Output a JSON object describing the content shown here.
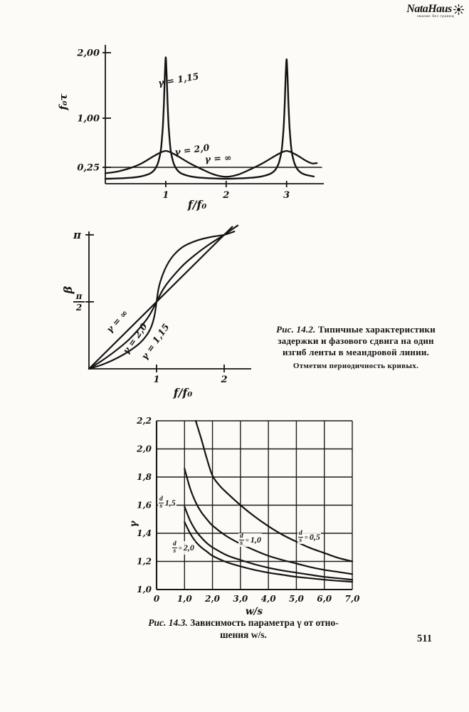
{
  "page_number": "511",
  "logo": {
    "name": "NataHaus",
    "tagline": "знание без границ"
  },
  "fig142": {
    "tag": "Рис. 14.2.",
    "line1": "Типичные характеристики",
    "line2": "задержки и фазового сдвига на один",
    "line3": "изгиб ленты в меандровой линии.",
    "note": "Отметим периодичность кривых."
  },
  "fig143": {
    "tag": "Рис. 14.3.",
    "line1": "Зависимость параметра γ от отно-",
    "line2": "шения w/s."
  },
  "chart_data": [
    {
      "id": "delay-per-bend",
      "type": "line",
      "xlabel": "f/f₀",
      "ylabel": "f₀τ",
      "xlim": [
        0,
        3.75
      ],
      "ylim": [
        0,
        2.15
      ],
      "grid": false,
      "xticks": [
        {
          "v": 1,
          "label": "1"
        },
        {
          "v": 2,
          "label": "2"
        },
        {
          "v": 3,
          "label": "3"
        }
      ],
      "yticks": [
        {
          "v": 2.0,
          "label": "2,00"
        },
        {
          "v": 1.0,
          "label": "1,00"
        },
        {
          "v": 0.25,
          "label": "0,25"
        }
      ],
      "series": [
        {
          "name": "γ = 1,15",
          "points": [
            [
              0,
              0.075
            ],
            [
              0.2,
              0.08
            ],
            [
              0.4,
              0.09
            ],
            [
              0.55,
              0.105
            ],
            [
              0.7,
              0.14
            ],
            [
              0.78,
              0.18
            ],
            [
              0.84,
              0.25
            ],
            [
              0.88,
              0.34
            ],
            [
              0.92,
              0.52
            ],
            [
              0.95,
              0.85
            ],
            [
              0.97,
              1.25
            ],
            [
              0.985,
              1.65
            ],
            [
              1.0,
              1.93
            ],
            [
              1.015,
              1.65
            ],
            [
              1.03,
              1.25
            ],
            [
              1.05,
              0.85
            ],
            [
              1.08,
              0.52
            ],
            [
              1.12,
              0.34
            ],
            [
              1.16,
              0.25
            ],
            [
              1.22,
              0.18
            ],
            [
              1.3,
              0.14
            ],
            [
              1.45,
              0.105
            ],
            [
              1.6,
              0.09
            ],
            [
              1.8,
              0.08
            ],
            [
              2.0,
              0.075
            ],
            [
              2.2,
              0.08
            ],
            [
              2.4,
              0.09
            ],
            [
              2.55,
              0.105
            ],
            [
              2.7,
              0.14
            ],
            [
              2.78,
              0.18
            ],
            [
              2.84,
              0.25
            ],
            [
              2.88,
              0.34
            ],
            [
              2.92,
              0.52
            ],
            [
              2.95,
              0.85
            ],
            [
              2.97,
              1.25
            ],
            [
              2.985,
              1.65
            ],
            [
              3.0,
              1.9
            ],
            [
              3.015,
              1.65
            ],
            [
              3.03,
              1.25
            ],
            [
              3.05,
              0.85
            ],
            [
              3.08,
              0.52
            ],
            [
              3.12,
              0.34
            ],
            [
              3.16,
              0.25
            ],
            [
              3.22,
              0.18
            ],
            [
              3.3,
              0.14
            ],
            [
              3.45,
              0.11
            ]
          ]
        },
        {
          "name": "γ = 2,0",
          "points": [
            [
              0,
              0.16
            ],
            [
              0.2,
              0.185
            ],
            [
              0.4,
              0.235
            ],
            [
              0.6,
              0.31
            ],
            [
              0.8,
              0.42
            ],
            [
              0.9,
              0.47
            ],
            [
              1.0,
              0.5
            ],
            [
              1.1,
              0.47
            ],
            [
              1.2,
              0.42
            ],
            [
              1.4,
              0.31
            ],
            [
              1.6,
              0.22
            ],
            [
              1.8,
              0.14
            ],
            [
              2.0,
              0.105
            ],
            [
              2.2,
              0.14
            ],
            [
              2.4,
              0.22
            ],
            [
              2.6,
              0.31
            ],
            [
              2.8,
              0.42
            ],
            [
              2.9,
              0.47
            ],
            [
              3.0,
              0.5
            ],
            [
              3.1,
              0.47
            ],
            [
              3.2,
              0.42
            ],
            [
              3.32,
              0.35
            ],
            [
              3.42,
              0.31
            ],
            [
              3.5,
              0.315
            ]
          ]
        },
        {
          "name": "γ = ∞",
          "points": [
            [
              0,
              0.25
            ],
            [
              3.58,
              0.25
            ]
          ]
        }
      ]
    },
    {
      "id": "phase-per-bend",
      "type": "line",
      "xlabel": "f/f₀",
      "ylabel": "β",
      "xlim": [
        0,
        2.4
      ],
      "ylim": [
        0,
        3.6
      ],
      "grid": false,
      "xticks": [
        {
          "v": 1,
          "label": "1"
        },
        {
          "v": 2,
          "label": "2"
        }
      ],
      "yticks": [
        {
          "v": 3.1416,
          "label": "π"
        },
        {
          "v": 1.5708,
          "label": "π/2",
          "fraction": [
            "π",
            "2"
          ]
        }
      ],
      "series": [
        {
          "name": "γ = ∞",
          "points": [
            [
              0,
              0
            ],
            [
              2.12,
              3.33
            ]
          ]
        },
        {
          "name": "γ = 2,0",
          "points": [
            [
              0,
              0
            ],
            [
              0.2,
              0.2
            ],
            [
              0.4,
              0.43
            ],
            [
              0.6,
              0.7
            ],
            [
              0.8,
              1.05
            ],
            [
              0.9,
              1.27
            ],
            [
              1.0,
              1.5708
            ],
            [
              1.1,
              1.87
            ],
            [
              1.2,
              2.09
            ],
            [
              1.4,
              2.44
            ],
            [
              1.6,
              2.71
            ],
            [
              1.8,
              2.94
            ],
            [
              2.0,
              3.1416
            ],
            [
              2.2,
              3.36
            ]
          ]
        },
        {
          "name": "γ = 1,15",
          "points": [
            [
              0,
              0
            ],
            [
              0.2,
              0.1
            ],
            [
              0.4,
              0.24
            ],
            [
              0.6,
              0.42
            ],
            [
              0.75,
              0.6
            ],
            [
              0.85,
              0.78
            ],
            [
              0.92,
              0.98
            ],
            [
              0.97,
              1.25
            ],
            [
              1.0,
              1.5708
            ],
            [
              1.03,
              1.89
            ],
            [
              1.08,
              2.16
            ],
            [
              1.15,
              2.42
            ],
            [
              1.25,
              2.66
            ],
            [
              1.4,
              2.87
            ],
            [
              1.6,
              3.01
            ],
            [
              1.8,
              3.09
            ],
            [
              2.0,
              3.1416
            ],
            [
              2.15,
              3.22
            ]
          ]
        }
      ]
    },
    {
      "id": "gamma-vs-ws",
      "type": "line",
      "xlabel": "w/s",
      "ylabel": "γ",
      "xlim": [
        0,
        7
      ],
      "ylim": [
        1.0,
        2.2
      ],
      "grid": true,
      "xticks": [
        {
          "v": 0,
          "label": "0"
        },
        {
          "v": 1,
          "label": "1,0"
        },
        {
          "v": 2,
          "label": "2,0"
        },
        {
          "v": 3,
          "label": "3,0"
        },
        {
          "v": 4,
          "label": "4,0"
        },
        {
          "v": 5,
          "label": "5,0"
        },
        {
          "v": 6,
          "label": "6,0"
        },
        {
          "v": 7,
          "label": "7,0"
        }
      ],
      "yticks": [
        {
          "v": 2.2,
          "label": "2,2"
        },
        {
          "v": 2.0,
          "label": "2,0"
        },
        {
          "v": 1.8,
          "label": "1,8"
        },
        {
          "v": 1.6,
          "label": "1,6"
        },
        {
          "v": 1.4,
          "label": "1,4"
        },
        {
          "v": 1.2,
          "label": "1,2"
        },
        {
          "v": 1.0,
          "label": "1,0"
        }
      ],
      "series": [
        {
          "name": "d/s = 0,5",
          "label": {
            "num": "d",
            "den": "s",
            "sep": "=",
            "value": "0,5"
          },
          "points": [
            [
              1.4,
              2.2
            ],
            [
              1.6,
              2.07
            ],
            [
              1.8,
              1.93
            ],
            [
              2.0,
              1.81
            ],
            [
              2.25,
              1.74
            ],
            [
              2.5,
              1.69
            ],
            [
              3.0,
              1.6
            ],
            [
              3.5,
              1.52
            ],
            [
              4.0,
              1.45
            ],
            [
              4.5,
              1.39
            ],
            [
              5.0,
              1.34
            ],
            [
              5.5,
              1.295
            ],
            [
              6.0,
              1.26
            ],
            [
              6.5,
              1.225
            ],
            [
              7.0,
              1.2
            ]
          ]
        },
        {
          "name": "d/s = 1,0",
          "label": {
            "num": "d",
            "den": "s",
            "sep": "=",
            "value": "1,0"
          },
          "points": [
            [
              1.0,
              1.86
            ],
            [
              1.2,
              1.72
            ],
            [
              1.4,
              1.62
            ],
            [
              1.6,
              1.55
            ],
            [
              1.8,
              1.5
            ],
            [
              2.0,
              1.455
            ],
            [
              2.5,
              1.38
            ],
            [
              3.0,
              1.325
            ],
            [
              3.5,
              1.28
            ],
            [
              4.0,
              1.24
            ],
            [
              4.5,
              1.21
            ],
            [
              5.0,
              1.185
            ],
            [
              5.5,
              1.16
            ],
            [
              6.0,
              1.14
            ],
            [
              6.5,
              1.125
            ],
            [
              7.0,
              1.11
            ]
          ]
        },
        {
          "name": "d/s 1,5",
          "label": {
            "num": "d",
            "den": "s",
            "sep": "",
            "value": "1,5"
          },
          "points": [
            [
              1.0,
              1.59
            ],
            [
              1.2,
              1.49
            ],
            [
              1.4,
              1.42
            ],
            [
              1.6,
              1.37
            ],
            [
              1.8,
              1.33
            ],
            [
              2.0,
              1.3
            ],
            [
              2.5,
              1.245
            ],
            [
              3.0,
              1.21
            ],
            [
              3.5,
              1.18
            ],
            [
              4.0,
              1.155
            ],
            [
              4.5,
              1.135
            ],
            [
              5.0,
              1.12
            ],
            [
              5.5,
              1.105
            ],
            [
              6.0,
              1.09
            ],
            [
              6.5,
              1.08
            ],
            [
              7.0,
              1.07
            ]
          ]
        },
        {
          "name": "d/s = 2,0",
          "label": {
            "num": "d",
            "den": "s",
            "sep": "=",
            "value": "2,0"
          },
          "points": [
            [
              1.0,
              1.48
            ],
            [
              1.2,
              1.4
            ],
            [
              1.4,
              1.34
            ],
            [
              1.6,
              1.3
            ],
            [
              1.8,
              1.27
            ],
            [
              2.0,
              1.24
            ],
            [
              2.5,
              1.195
            ],
            [
              3.0,
              1.165
            ],
            [
              3.5,
              1.14
            ],
            [
              4.0,
              1.12
            ],
            [
              4.5,
              1.105
            ],
            [
              5.0,
              1.09
            ],
            [
              5.5,
              1.08
            ],
            [
              6.0,
              1.07
            ],
            [
              6.5,
              1.062
            ],
            [
              7.0,
              1.055
            ]
          ]
        }
      ]
    }
  ]
}
